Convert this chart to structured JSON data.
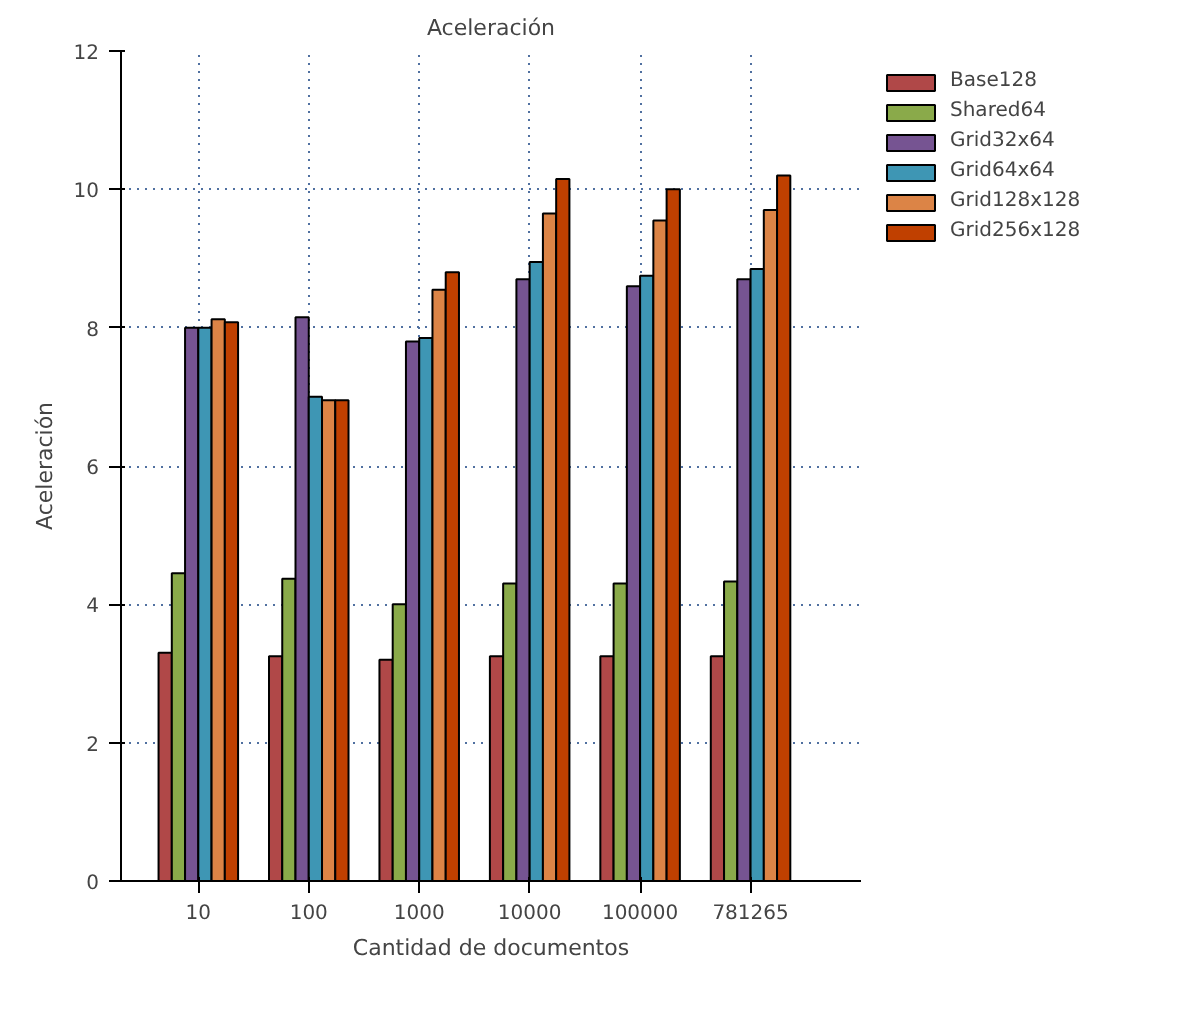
{
  "chart_data": {
    "type": "bar",
    "title": "Aceleración",
    "xlabel": "Cantidad de documentos",
    "ylabel": "Aceleración",
    "categories": [
      "10",
      "100",
      "1000",
      "10000",
      "100000",
      "781265"
    ],
    "series": [
      {
        "name": "Base128",
        "color": "#b04848",
        "values": [
          3.3,
          3.25,
          3.2,
          3.25,
          3.25,
          3.25
        ]
      },
      {
        "name": "Shared64",
        "color": "#8aaa4a",
        "values": [
          4.45,
          4.37,
          4.0,
          4.3,
          4.3,
          4.33
        ]
      },
      {
        "name": "Grid32x64",
        "color": "#765492",
        "values": [
          8.0,
          8.15,
          7.8,
          8.7,
          8.6,
          8.7
        ]
      },
      {
        "name": "Grid64x64",
        "color": "#3e96b4",
        "values": [
          8.0,
          7.0,
          7.85,
          8.95,
          8.75,
          8.85
        ]
      },
      {
        "name": "Grid128x128",
        "color": "#dc8446",
        "values": [
          8.12,
          6.95,
          8.55,
          9.65,
          9.55,
          9.7
        ]
      },
      {
        "name": "Grid256x128",
        "color": "#c04000",
        "values": [
          8.08,
          6.95,
          8.8,
          10.15,
          10.0,
          10.2
        ]
      }
    ],
    "ylim": [
      0,
      12
    ],
    "yticks": [
      0,
      2,
      4,
      6,
      8,
      10,
      12
    ],
    "grid": true,
    "legend": "top right"
  }
}
